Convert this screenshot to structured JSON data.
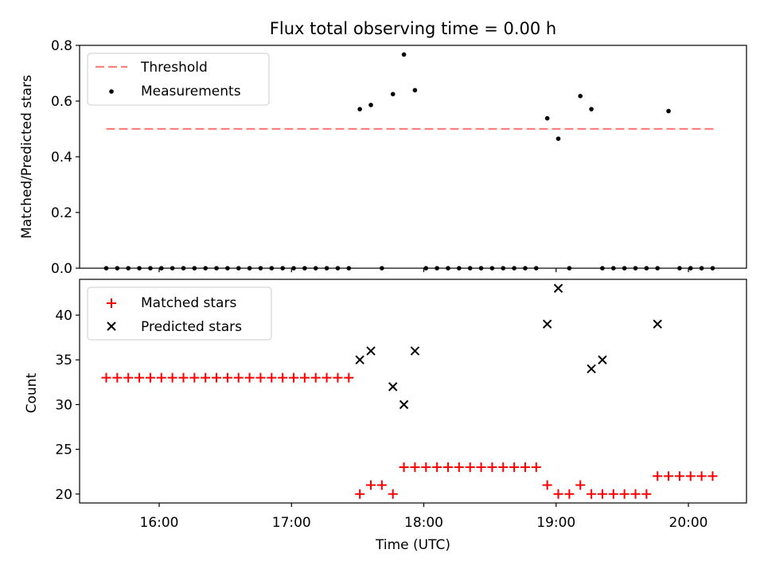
{
  "chart_data": [
    {
      "type": "scatter",
      "title": "Flux total observing time = 0.00 h",
      "xlabel": "",
      "ylabel": "Matched/Predicted stars",
      "ylim": [
        0,
        0.8
      ],
      "yticks": [
        "0.0",
        "0.2",
        "0.4",
        "0.6",
        "0.8"
      ],
      "legend_position": "top-left",
      "threshold": {
        "name": "Threshold",
        "value": 0.5,
        "x_range": [
          "15:36",
          "20:12"
        ],
        "color": "#ff7f7f"
      },
      "series": [
        {
          "name": "Measurements",
          "color": "#000000",
          "x": [
            "15:36",
            "15:41",
            "15:46",
            "15:51",
            "15:56",
            "16:01",
            "16:06",
            "16:11",
            "16:16",
            "16:21",
            "16:26",
            "16:31",
            "16:36",
            "16:41",
            "16:46",
            "16:51",
            "16:56",
            "17:01",
            "17:06",
            "17:11",
            "17:16",
            "17:21",
            "17:26",
            "17:31",
            "17:36",
            "17:41",
            "17:46",
            "17:51",
            "17:56",
            "18:01",
            "18:06",
            "18:11",
            "18:16",
            "18:21",
            "18:26",
            "18:31",
            "18:36",
            "18:41",
            "18:46",
            "18:51",
            "18:56",
            "19:01",
            "19:06",
            "19:11",
            "19:16",
            "19:21",
            "19:26",
            "19:31",
            "19:36",
            "19:41",
            "19:46",
            "19:51",
            "19:56",
            "20:01",
            "20:06",
            "20:11"
          ],
          "values": [
            0,
            0,
            0,
            0,
            0,
            0,
            0,
            0,
            0,
            0,
            0,
            0,
            0,
            0,
            0,
            0,
            0,
            0,
            0,
            0,
            0,
            0,
            0,
            0.571,
            0.586,
            0,
            0.625,
            0.767,
            0.639,
            0,
            0,
            0,
            0,
            0,
            0,
            0,
            0,
            0,
            0,
            0,
            0.538,
            0.465,
            0,
            0.618,
            0.571,
            0,
            0,
            0,
            0,
            0,
            0,
            0.564,
            0,
            0,
            0,
            0
          ]
        }
      ]
    },
    {
      "type": "scatter",
      "title": "",
      "xlabel": "Time (UTC)",
      "ylabel": "Count",
      "ylim": [
        19,
        44
      ],
      "yticks": [
        "20",
        "25",
        "30",
        "35",
        "40"
      ],
      "xticks": [
        "16:00",
        "17:00",
        "18:00",
        "19:00",
        "20:00"
      ],
      "legend_position": "top-left",
      "series": [
        {
          "name": "Matched stars",
          "marker": "plus",
          "color": "#ff0000",
          "x": [
            "15:36",
            "15:41",
            "15:46",
            "15:51",
            "15:56",
            "16:01",
            "16:06",
            "16:11",
            "16:16",
            "16:21",
            "16:26",
            "16:31",
            "16:36",
            "16:41",
            "16:46",
            "16:51",
            "16:56",
            "17:01",
            "17:06",
            "17:11",
            "17:16",
            "17:21",
            "17:26",
            "17:31",
            "17:36",
            "17:41",
            "17:46",
            "17:51",
            "17:56",
            "18:01",
            "18:06",
            "18:11",
            "18:16",
            "18:21",
            "18:26",
            "18:31",
            "18:36",
            "18:41",
            "18:46",
            "18:51",
            "18:56",
            "19:01",
            "19:06",
            "19:11",
            "19:16",
            "19:21",
            "19:26",
            "19:31",
            "19:36",
            "19:41",
            "19:46",
            "19:51",
            "19:56",
            "20:01",
            "20:06",
            "20:11"
          ],
          "values": [
            33,
            33,
            33,
            33,
            33,
            33,
            33,
            33,
            33,
            33,
            33,
            33,
            33,
            33,
            33,
            33,
            33,
            33,
            33,
            33,
            33,
            33,
            33,
            20,
            21,
            21,
            20,
            23,
            23,
            23,
            23,
            23,
            23,
            23,
            23,
            23,
            23,
            23,
            23,
            23,
            21,
            20,
            20,
            21,
            20,
            20,
            20,
            20,
            20,
            20,
            22,
            22,
            22,
            22,
            22,
            22
          ]
        },
        {
          "name": "Predicted stars",
          "marker": "x",
          "color": "#000000",
          "x": [
            "17:31",
            "17:36",
            "17:46",
            "17:51",
            "17:56",
            "18:56",
            "19:01",
            "19:16",
            "19:21",
            "19:46"
          ],
          "values": [
            35,
            36,
            32,
            30,
            36,
            39,
            43,
            34,
            35,
            39
          ]
        }
      ]
    }
  ]
}
